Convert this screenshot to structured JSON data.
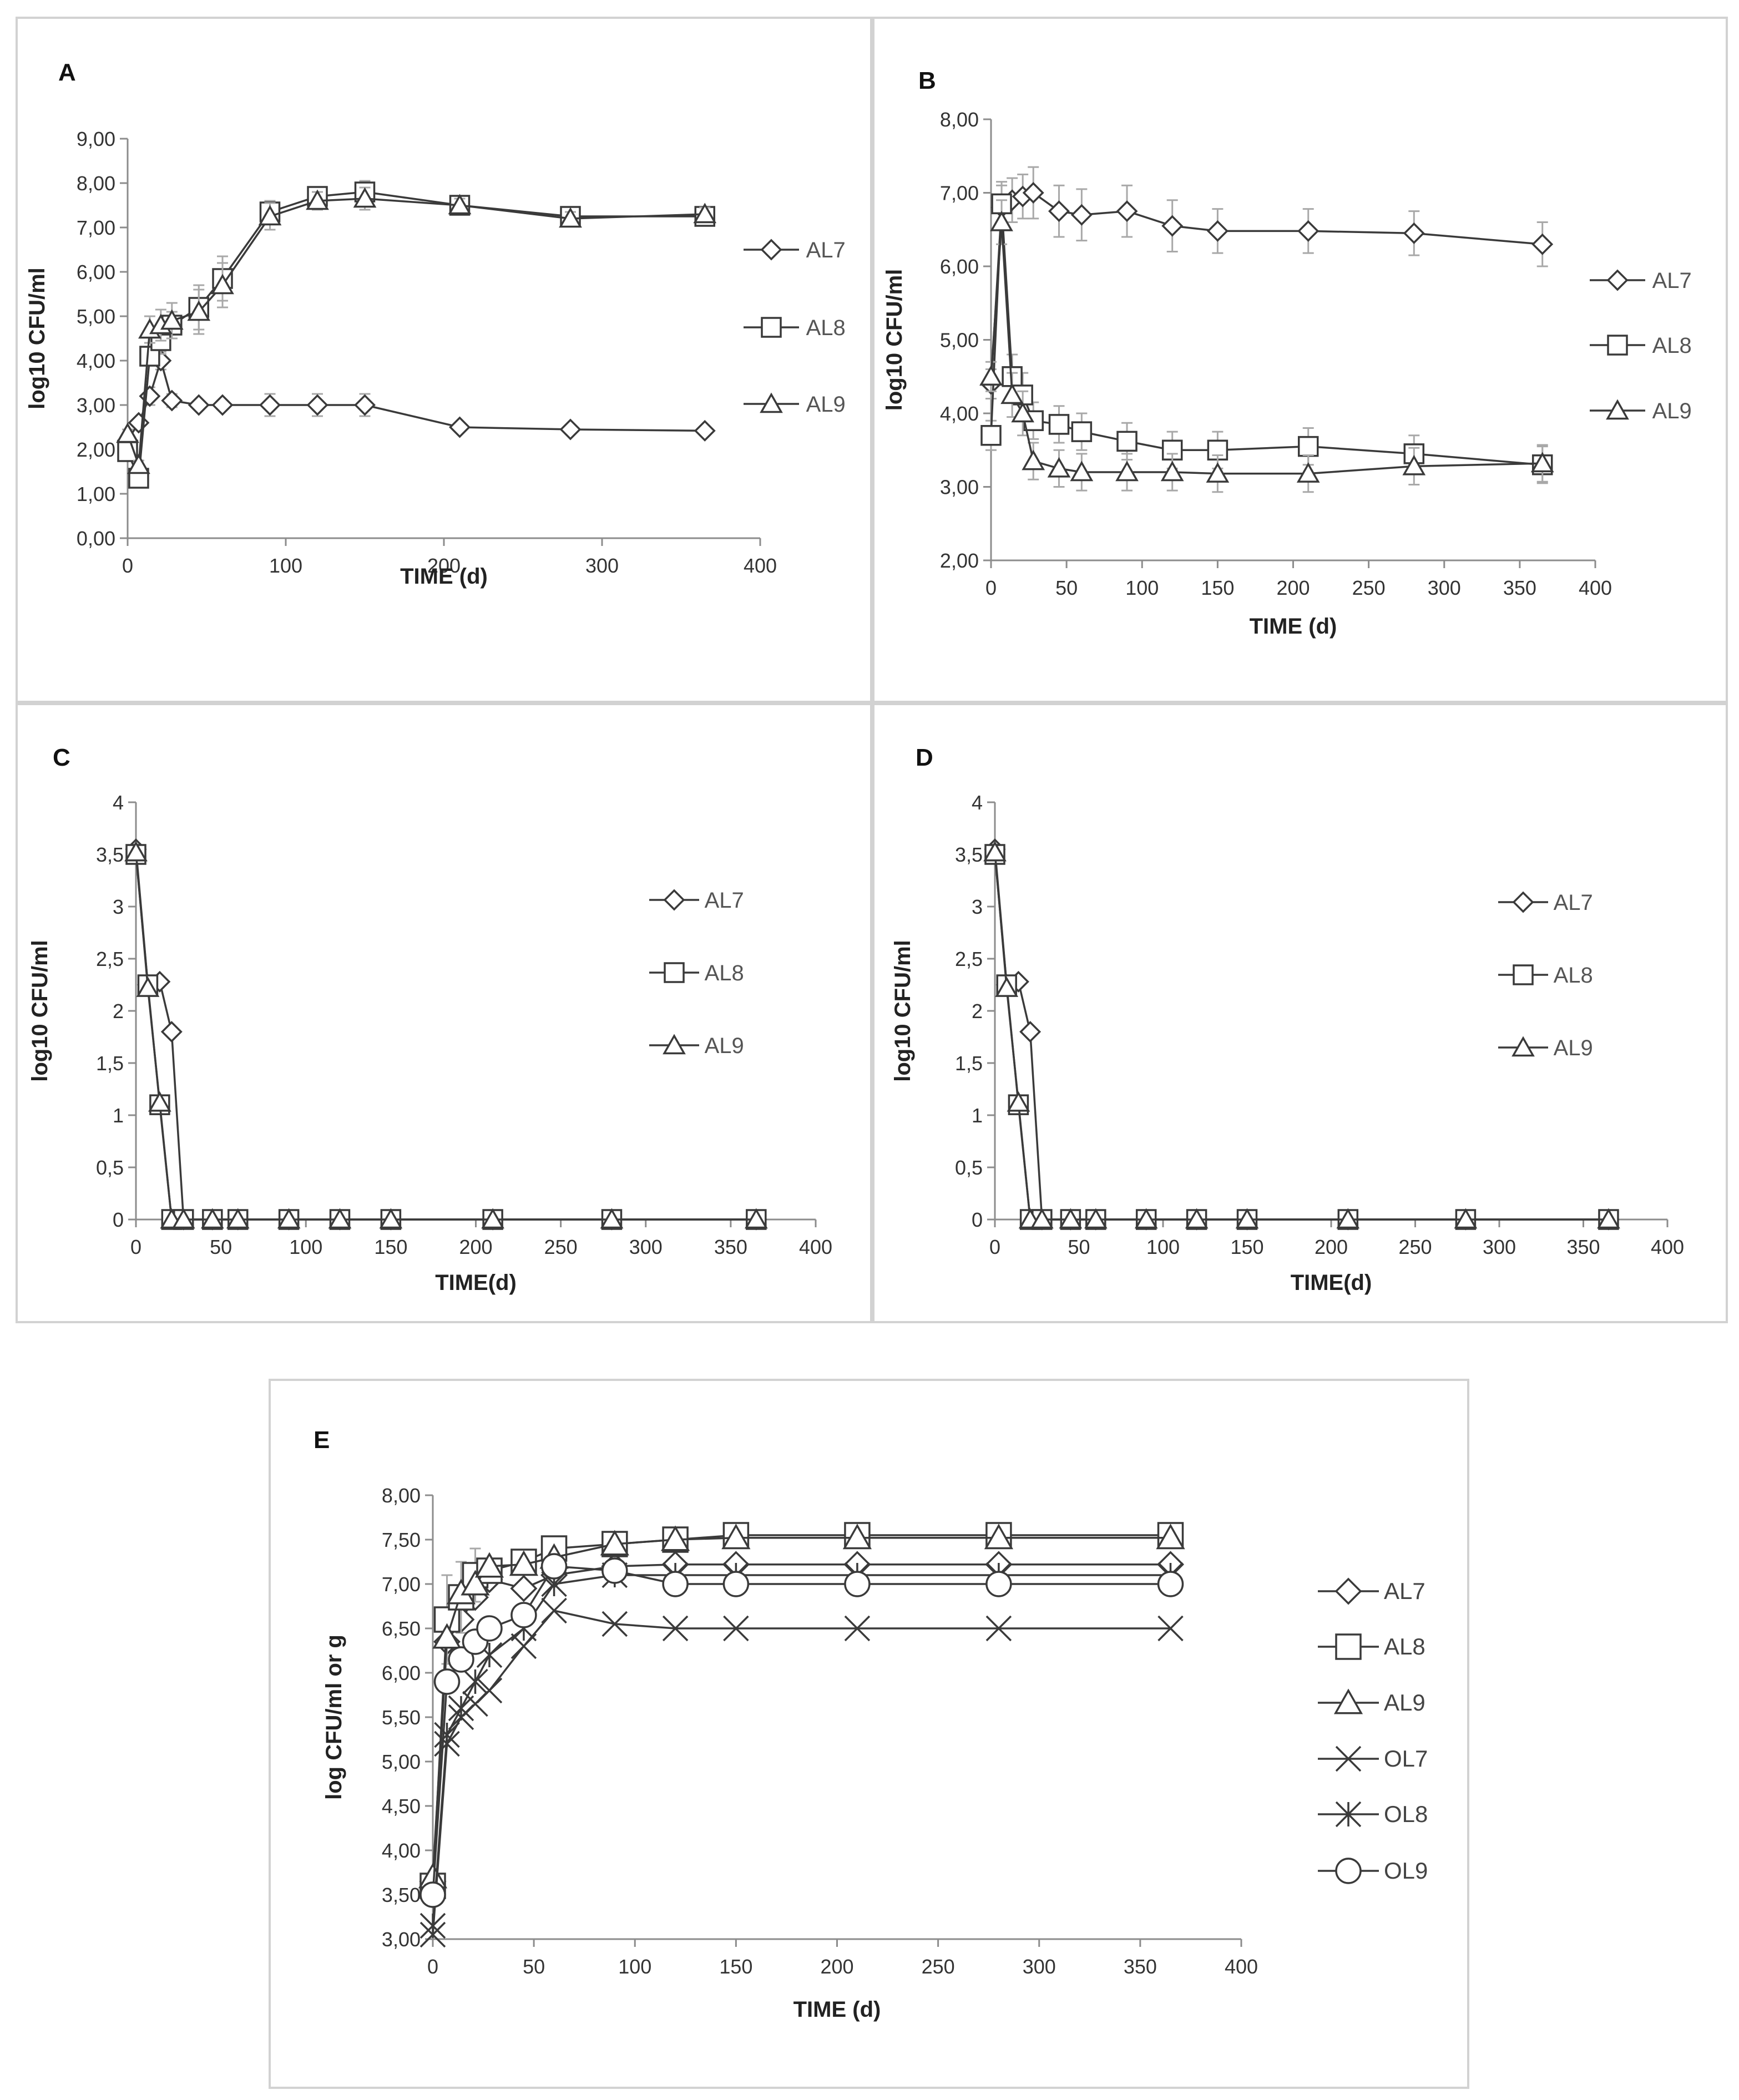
{
  "chart_data": [
    {
      "panel": "A",
      "type": "line",
      "xlabel": "TIME (d)",
      "ylabel": "log10 CFU/ml",
      "xlim": [
        0,
        400
      ],
      "ylim": [
        0,
        9
      ],
      "xstep": 100,
      "ystep": 1,
      "ydec": 2,
      "xticks": [
        "0",
        "100",
        "200",
        "300",
        "400"
      ],
      "yticks": [
        "0,00",
        "1,00",
        "2,00",
        "3,00",
        "4,00",
        "5,00",
        "6,00",
        "7,00",
        "8,00",
        "9,00"
      ],
      "series": [
        {
          "name": "AL7",
          "marker": "diamond",
          "x": [
            0,
            7,
            14,
            21,
            28,
            45,
            60,
            90,
            120,
            150,
            210,
            280,
            365
          ],
          "y": [
            2.2,
            2.6,
            3.2,
            4.0,
            3.1,
            3.0,
            3.0,
            3.0,
            3.0,
            3.0,
            2.5,
            2.45,
            2.42
          ],
          "err": [
            0.1,
            0.1,
            0.2,
            0.2,
            0.15,
            0.1,
            0.1,
            0.25,
            0.25,
            0.25,
            0.1,
            0.1,
            0.1
          ]
        },
        {
          "name": "AL8",
          "marker": "square",
          "x": [
            0,
            7,
            14,
            21,
            28,
            45,
            60,
            90,
            120,
            150,
            210,
            280,
            365
          ],
          "y": [
            1.95,
            1.35,
            4.1,
            4.45,
            4.8,
            5.2,
            5.85,
            7.35,
            7.7,
            7.8,
            7.5,
            7.25,
            7.25
          ],
          "err": [
            0.1,
            0.1,
            0.2,
            0.3,
            0.3,
            0.5,
            0.5,
            0.25,
            0.2,
            0.25,
            0.15,
            0.15,
            0.15
          ]
        },
        {
          "name": "AL9",
          "marker": "triangle",
          "x": [
            0,
            7,
            14,
            21,
            28,
            45,
            60,
            90,
            120,
            150,
            210,
            280,
            365
          ],
          "y": [
            2.35,
            1.65,
            4.7,
            4.8,
            4.9,
            5.1,
            5.7,
            7.25,
            7.6,
            7.65,
            7.5,
            7.2,
            7.3
          ],
          "err": [
            0.1,
            0.1,
            0.3,
            0.35,
            0.4,
            0.5,
            0.5,
            0.3,
            0.2,
            0.25,
            0.15,
            0.15,
            0.15
          ]
        }
      ]
    },
    {
      "panel": "B",
      "type": "line",
      "xlabel": "TIME (d)",
      "ylabel": "log10 CFU/ml",
      "xlim": [
        0,
        400
      ],
      "ylim": [
        2,
        8
      ],
      "xstep": 50,
      "ystep": 1,
      "ydec": 2,
      "xticks": [
        "0",
        "50",
        "100",
        "150",
        "200",
        "250",
        "300",
        "350",
        "400"
      ],
      "yticks": [
        "2,00",
        "3,00",
        "4,00",
        "5,00",
        "6,00",
        "7,00",
        "8,00"
      ],
      "series": [
        {
          "name": "AL7",
          "marker": "diamond",
          "x": [
            0,
            7,
            14,
            21,
            28,
            45,
            60,
            90,
            120,
            150,
            210,
            280,
            365
          ],
          "y": [
            4.4,
            6.8,
            6.9,
            6.95,
            7.0,
            6.75,
            6.7,
            6.75,
            6.55,
            6.48,
            6.48,
            6.45,
            6.3
          ],
          "err": [
            0.2,
            0.3,
            0.3,
            0.3,
            0.35,
            0.35,
            0.35,
            0.35,
            0.35,
            0.3,
            0.3,
            0.3,
            0.3
          ]
        },
        {
          "name": "AL8",
          "marker": "square",
          "x": [
            0,
            7,
            14,
            21,
            28,
            45,
            60,
            90,
            120,
            150,
            210,
            280,
            365
          ],
          "y": [
            3.7,
            6.85,
            4.5,
            4.25,
            3.9,
            3.85,
            3.75,
            3.62,
            3.5,
            3.5,
            3.55,
            3.45,
            3.3
          ],
          "err": [
            0.2,
            0.3,
            0.3,
            0.3,
            0.25,
            0.25,
            0.25,
            0.25,
            0.25,
            0.25,
            0.25,
            0.25,
            0.25
          ]
        },
        {
          "name": "AL9",
          "marker": "triangle",
          "x": [
            0,
            7,
            14,
            21,
            28,
            45,
            60,
            90,
            120,
            150,
            210,
            280,
            365
          ],
          "y": [
            4.5,
            6.6,
            4.25,
            4.0,
            3.35,
            3.25,
            3.2,
            3.2,
            3.2,
            3.18,
            3.18,
            3.28,
            3.32
          ],
          "err": [
            0.2,
            0.3,
            0.3,
            0.3,
            0.25,
            0.25,
            0.25,
            0.25,
            0.25,
            0.25,
            0.25,
            0.25,
            0.25
          ]
        }
      ]
    },
    {
      "panel": "C",
      "type": "line",
      "xlabel": "TIME(d)",
      "ylabel": "log10 CFU/ml",
      "xlim": [
        0,
        400
      ],
      "ylim": [
        0,
        4
      ],
      "xstep": 50,
      "ystep": 0.5,
      "ydec": 1,
      "xticks": [
        "0",
        "50",
        "100",
        "150",
        "200",
        "250",
        "300",
        "350",
        "400"
      ],
      "yticks": [
        "0",
        "0,5",
        "1",
        "1,5",
        "2",
        "2,5",
        "3",
        "3,5",
        "4"
      ],
      "series": [
        {
          "name": "AL7",
          "marker": "diamond",
          "x": [
            0,
            7,
            14,
            21,
            28,
            45,
            60,
            90,
            120,
            150,
            210,
            280,
            365
          ],
          "y": [
            3.55,
            2.25,
            2.28,
            1.8,
            0,
            0,
            0,
            0,
            0,
            0,
            0,
            0,
            0
          ],
          "err": []
        },
        {
          "name": "AL8",
          "marker": "square",
          "x": [
            0,
            7,
            14,
            21,
            28,
            45,
            60,
            90,
            120,
            150,
            210,
            280,
            365
          ],
          "y": [
            3.5,
            2.25,
            1.1,
            0,
            0,
            0,
            0,
            0,
            0,
            0,
            0,
            0,
            0
          ],
          "err": []
        },
        {
          "name": "AL9",
          "marker": "triangle",
          "x": [
            0,
            7,
            14,
            21,
            28,
            45,
            60,
            90,
            120,
            150,
            210,
            280,
            365
          ],
          "y": [
            3.52,
            2.22,
            1.12,
            0,
            0,
            0,
            0,
            0,
            0,
            0,
            0,
            0,
            0
          ],
          "err": []
        }
      ]
    },
    {
      "panel": "D",
      "type": "line",
      "xlabel": "TIME(d)",
      "ylabel": "log10 CFU/ml",
      "xlim": [
        0,
        400
      ],
      "ylim": [
        0,
        4
      ],
      "xstep": 50,
      "ystep": 0.5,
      "ydec": 1,
      "xticks": [
        "0",
        "50",
        "100",
        "150",
        "200",
        "250",
        "300",
        "350",
        "400"
      ],
      "yticks": [
        "0",
        "0,5",
        "1",
        "1,5",
        "2",
        "2,5",
        "3",
        "3,5",
        "4"
      ],
      "series": [
        {
          "name": "AL7",
          "marker": "diamond",
          "x": [
            0,
            7,
            14,
            21,
            28,
            45,
            60,
            90,
            120,
            150,
            210,
            280,
            365
          ],
          "y": [
            3.55,
            2.25,
            2.28,
            1.8,
            0,
            0,
            0,
            0,
            0,
            0,
            0,
            0,
            0
          ],
          "err": []
        },
        {
          "name": "AL8",
          "marker": "square",
          "x": [
            0,
            7,
            14,
            21,
            28,
            45,
            60,
            90,
            120,
            150,
            210,
            280,
            365
          ],
          "y": [
            3.5,
            2.25,
            1.1,
            0,
            0,
            0,
            0,
            0,
            0,
            0,
            0,
            0,
            0
          ],
          "err": []
        },
        {
          "name": "AL9",
          "marker": "triangle",
          "x": [
            0,
            7,
            14,
            21,
            28,
            45,
            60,
            90,
            120,
            150,
            210,
            280,
            365
          ],
          "y": [
            3.52,
            2.22,
            1.12,
            0,
            0,
            0,
            0,
            0,
            0,
            0,
            0,
            0,
            0
          ],
          "err": []
        }
      ]
    },
    {
      "panel": "E",
      "type": "line",
      "xlabel": "TIME (d)",
      "ylabel": "log CFU/ml or g",
      "xlim": [
        0,
        400
      ],
      "ylim": [
        3,
        8
      ],
      "xstep": 50,
      "ystep": 0.5,
      "ydec": 2,
      "xticks": [
        "0",
        "50",
        "100",
        "150",
        "200",
        "250",
        "300",
        "350",
        "400"
      ],
      "yticks": [
        "3,00",
        "3,50",
        "4,00",
        "4,50",
        "5,00",
        "5,50",
        "6,00",
        "6,50",
        "7,00",
        "7,50",
        "8,00"
      ],
      "series": [
        {
          "name": "AL7",
          "marker": "diamond",
          "x": [
            0,
            7,
            14,
            21,
            28,
            45,
            60,
            90,
            120,
            150,
            210,
            280,
            365
          ],
          "y": [
            3.65,
            6.35,
            6.6,
            6.85,
            7.05,
            6.95,
            7.1,
            7.2,
            7.22,
            7.22,
            7.22,
            7.22,
            7.22
          ],
          "err": []
        },
        {
          "name": "AL8",
          "marker": "square",
          "x": [
            0,
            7,
            14,
            21,
            28,
            45,
            60,
            90,
            120,
            150,
            210,
            280,
            365
          ],
          "y": [
            3.6,
            6.6,
            6.85,
            7.1,
            7.15,
            7.25,
            7.4,
            7.45,
            7.5,
            7.55,
            7.55,
            7.55,
            7.55
          ],
          "err": [
            0.1,
            0.5,
            0.4,
            0.3,
            0.1,
            0.1,
            0.1,
            0.1,
            0.1,
            0.1,
            0.1,
            0.1,
            0.1
          ]
        },
        {
          "name": "AL9",
          "marker": "triangle",
          "x": [
            0,
            7,
            14,
            21,
            28,
            45,
            60,
            90,
            120,
            150,
            210,
            280,
            365
          ],
          "y": [
            3.7,
            6.4,
            6.9,
            7.0,
            7.2,
            7.22,
            7.3,
            7.45,
            7.5,
            7.52,
            7.52,
            7.52,
            7.52
          ],
          "err": []
        },
        {
          "name": "OL7",
          "marker": "x",
          "x": [
            0,
            7,
            14,
            21,
            28,
            45,
            60,
            90,
            120,
            150,
            210,
            280,
            365
          ],
          "y": [
            3.05,
            5.2,
            5.5,
            5.65,
            5.8,
            6.3,
            6.7,
            6.55,
            6.5,
            6.5,
            6.5,
            6.5,
            6.5
          ],
          "err": []
        },
        {
          "name": "OL8",
          "marker": "star",
          "x": [
            0,
            7,
            14,
            21,
            28,
            45,
            60,
            90,
            120,
            150,
            210,
            280,
            365
          ],
          "y": [
            3.15,
            5.3,
            5.6,
            5.9,
            6.2,
            6.5,
            7.0,
            7.1,
            7.1,
            7.1,
            7.1,
            7.1,
            7.1
          ],
          "err": []
        },
        {
          "name": "OL9",
          "marker": "circle",
          "x": [
            0,
            7,
            14,
            21,
            28,
            45,
            60,
            90,
            120,
            150,
            210,
            280,
            365
          ],
          "y": [
            3.5,
            5.9,
            6.15,
            6.35,
            6.5,
            6.65,
            7.2,
            7.15,
            7.0,
            7.0,
            7.0,
            7.0,
            7.0
          ],
          "err": []
        }
      ]
    }
  ]
}
